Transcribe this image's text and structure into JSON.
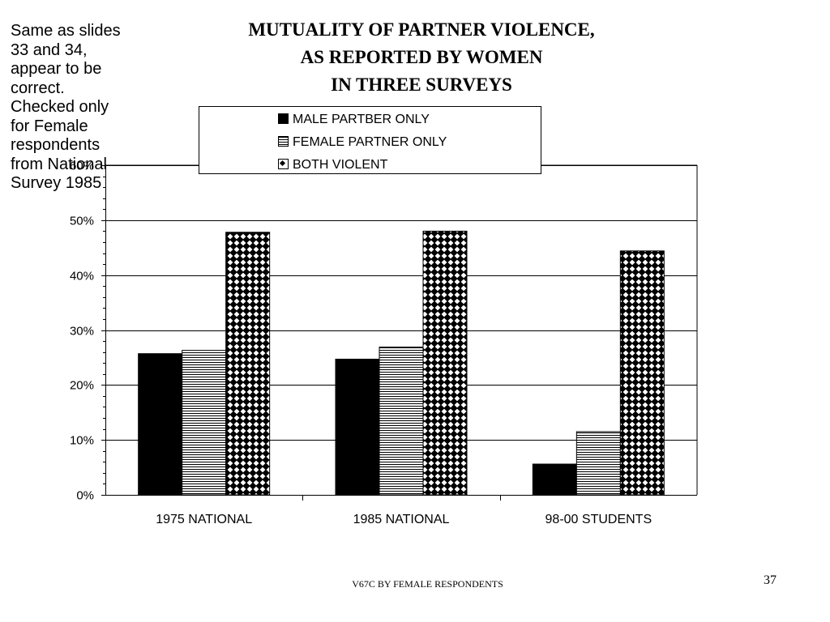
{
  "note": "Same as slides\n33 and 34,\nappear to be\ncorrect.\nChecked only\nfor Female\nrespondents\nfrom National\nSurvey 1985",
  "footer": "V67C BY FEMALE RESPONDENTS",
  "slide_number": "37",
  "chart_data": {
    "type": "bar",
    "title": "MUTUALITY OF PARTNER VIOLENCE,\nAS REPORTED BY WOMEN\nIN THREE SURVEYS",
    "xlabel": "",
    "ylabel": "",
    "categories": [
      "1975 NATIONAL",
      "1985 NATIONAL",
      "98-00 STUDENTS"
    ],
    "series": [
      {
        "name": "MALE PARTBER ONLY",
        "values": [
          25.7,
          24.7,
          5.6
        ],
        "pattern": "solid-black"
      },
      {
        "name": "FEMALE PARTNER ONLY",
        "values": [
          26.3,
          26.9,
          11.5
        ],
        "pattern": "horizontal-lines"
      },
      {
        "name": "BOTH VIOLENT",
        "values": [
          47.8,
          48.0,
          44.4
        ],
        "pattern": "diamond-checker"
      }
    ],
    "ylim": [
      0,
      60
    ],
    "yticks": [
      0,
      10,
      20,
      30,
      40,
      50,
      60
    ],
    "ytick_labels": [
      "0%",
      "10%",
      "20%",
      "30%",
      "40%",
      "50%",
      "60%"
    ],
    "grid": true,
    "legend_position": "top-center",
    "colors": {
      "bar_fill": "#000000",
      "background": "#ffffff",
      "gridline": "#000000"
    }
  }
}
